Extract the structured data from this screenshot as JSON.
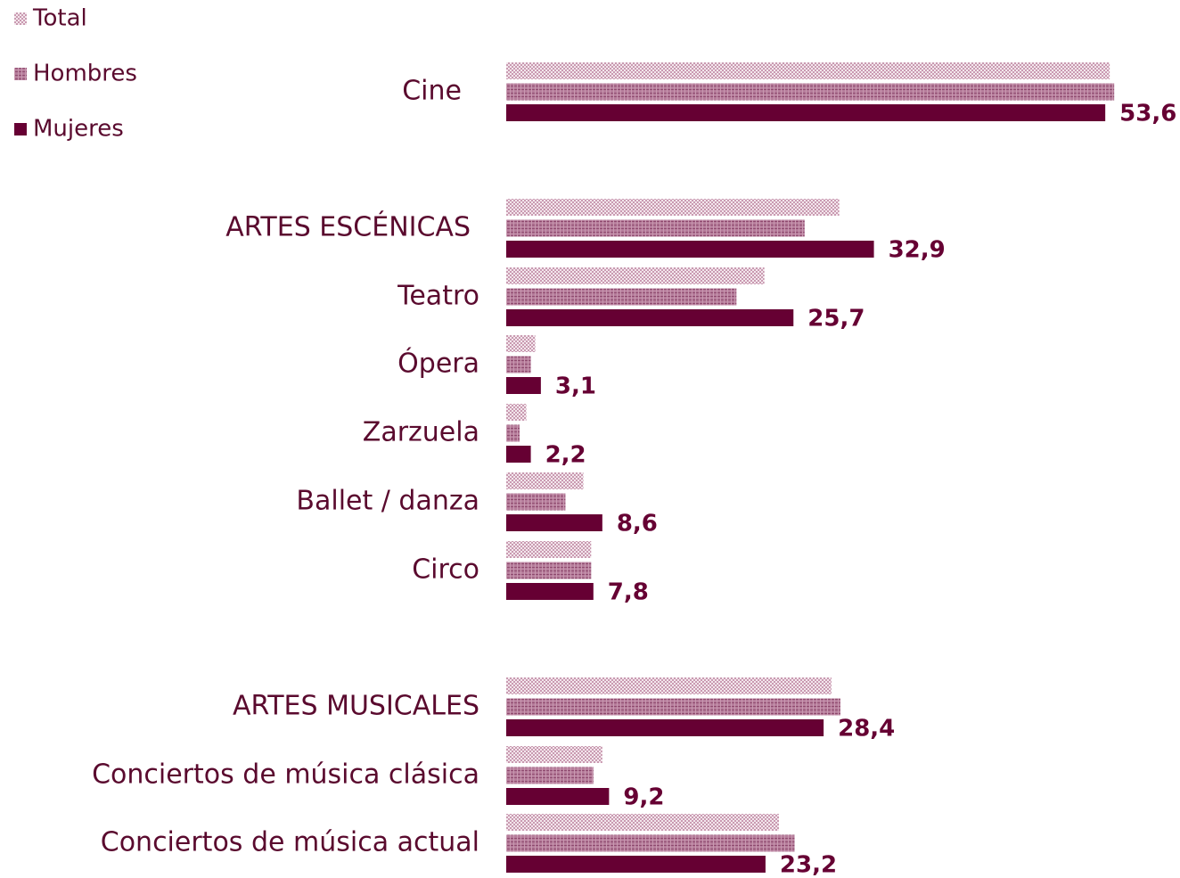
{
  "chart_data": {
    "type": "hbar",
    "categories": [
      "Cine",
      "ARTES ESCÉNICAS",
      "Teatro",
      "Ópera",
      "Zarzuela",
      "Ballet / danza",
      "Circo",
      "ARTES MUSICALES",
      "Conciertos de música clásica",
      "Conciertos de música actual"
    ],
    "series": [
      {
        "name": "Total",
        "color": "#d9b4c6",
        "values": [
          54.0,
          29.8,
          23.1,
          2.6,
          1.8,
          6.9,
          7.6,
          29.1,
          8.6,
          24.4
        ]
      },
      {
        "name": "Hombres",
        "color": "#a8668a",
        "values": [
          54.4,
          26.7,
          20.6,
          2.2,
          1.2,
          5.3,
          7.6,
          29.9,
          7.8,
          25.8
        ]
      },
      {
        "name": "Mujeres",
        "color": "#660033",
        "values": [
          53.6,
          32.9,
          25.7,
          3.1,
          2.2,
          8.6,
          7.8,
          28.4,
          9.2,
          23.2
        ],
        "value_labels": [
          "53,6",
          "32,9",
          "25,7",
          "3,1",
          "2,2",
          "8,6",
          "7,8",
          "28,4",
          "9,2",
          "23,2"
        ]
      }
    ],
    "xlim": [
      0,
      55
    ],
    "legend": "top-left"
  }
}
